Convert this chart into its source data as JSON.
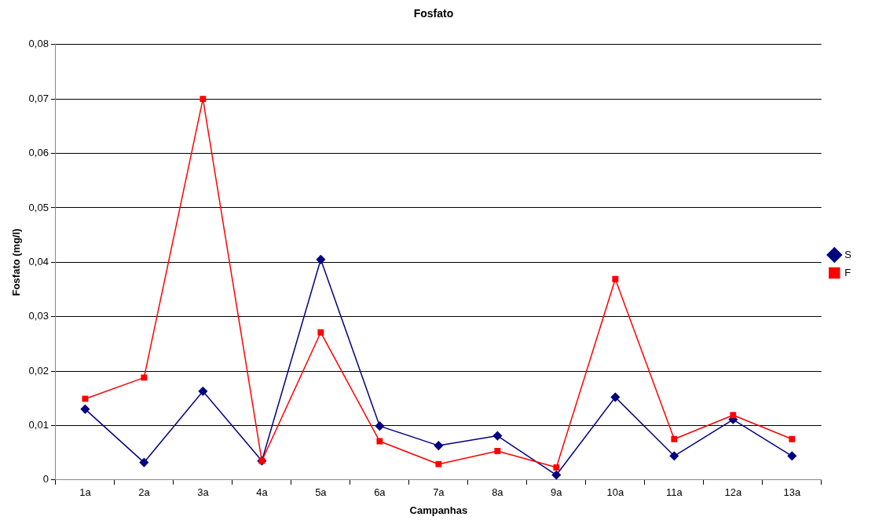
{
  "chart_data": {
    "type": "line",
    "title": "Fosfato",
    "xlabel": "Campanhas",
    "ylabel": "Fosfato (mg/l)",
    "categories": [
      "1a",
      "2a",
      "3a",
      "4a",
      "5a",
      "6a",
      "7a",
      "8a",
      "9a",
      "10a",
      "11a",
      "12a",
      "13a"
    ],
    "series": [
      {
        "name": "S",
        "color": "#000080",
        "marker": "diamond",
        "values": [
          0.013,
          0.0032,
          0.0163,
          0.0035,
          0.0405,
          0.0099,
          0.0063,
          0.0081,
          0.0009,
          0.0152,
          0.0044,
          0.0111,
          0.0044
        ]
      },
      {
        "name": "F",
        "color": "#ff0000",
        "marker": "square",
        "values": [
          0.0149,
          0.0188,
          0.07,
          0.0035,
          0.0271,
          0.0071,
          0.0029,
          0.0053,
          0.0023,
          0.0369,
          0.0075,
          0.0119,
          0.0075
        ]
      }
    ],
    "ylim": [
      0,
      0.08
    ],
    "yticks": [
      0,
      {
        "value": 0.01,
        "label": "0,01"
      },
      {
        "value": 0.02,
        "label": "0,02"
      },
      {
        "value": 0.03,
        "label": "0,03"
      },
      {
        "value": 0.04,
        "label": "0,04"
      },
      {
        "value": 0.05,
        "label": "0,05"
      },
      {
        "value": 0.06,
        "label": "0,06"
      },
      {
        "value": 0.07,
        "label": "0,07"
      },
      {
        "value": 0.08,
        "label": "0,08"
      }
    ],
    "grid": "y",
    "legend": "right",
    "line_style": "solid"
  }
}
